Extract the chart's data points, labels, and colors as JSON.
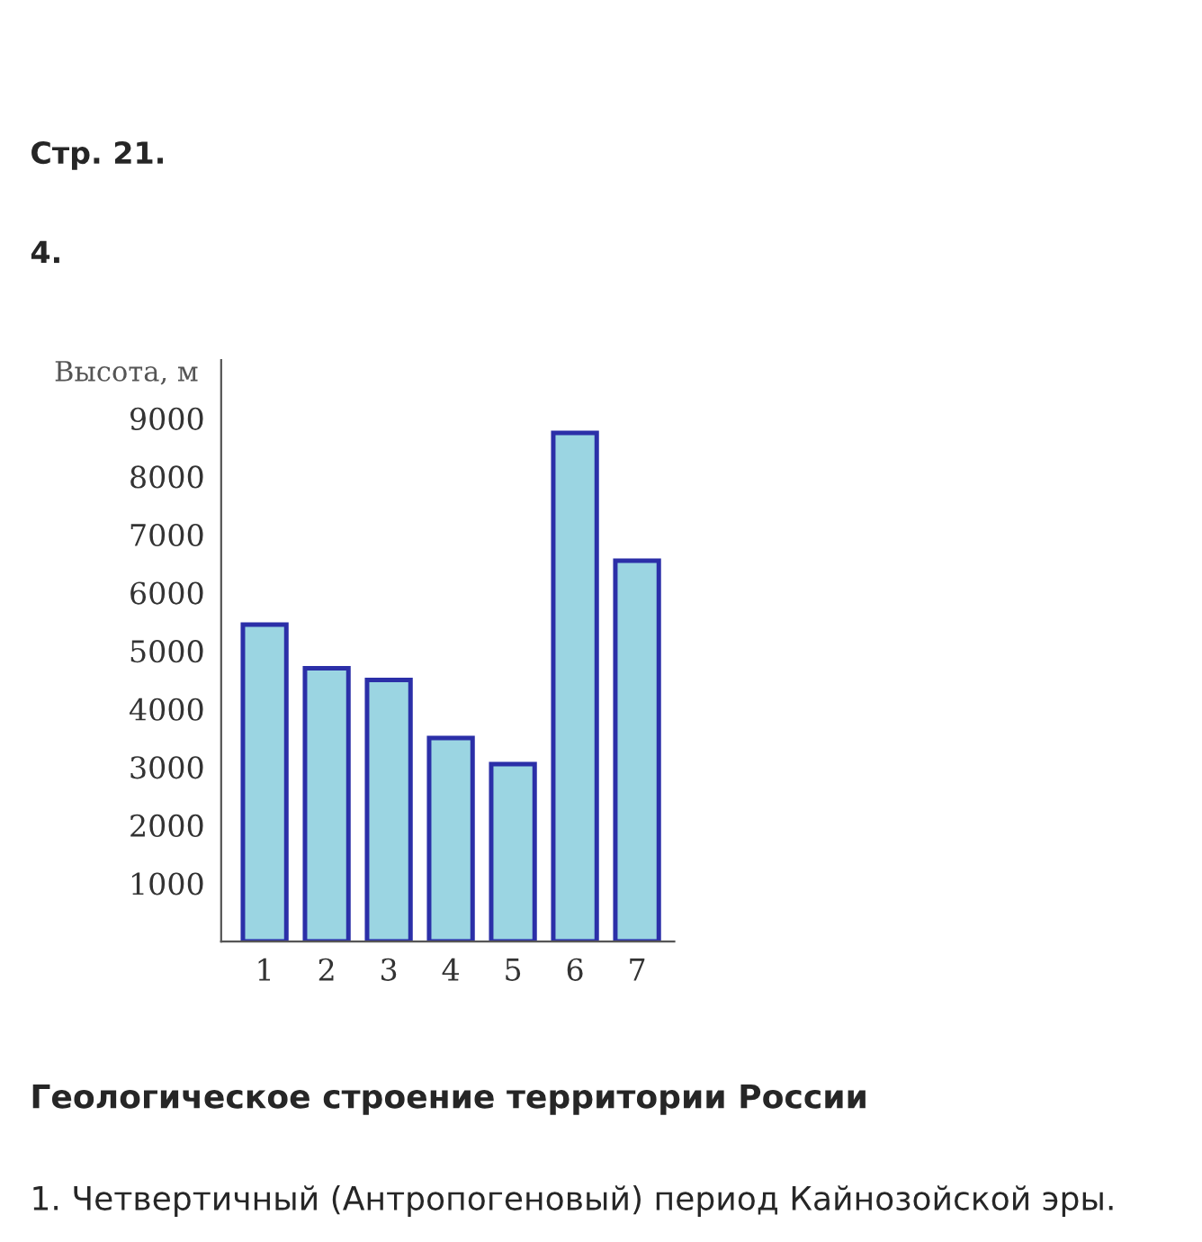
{
  "chart_data": {
    "type": "bar",
    "ylabel": "Высота, м",
    "categories": [
      "1",
      "2",
      "3",
      "4",
      "5",
      "6",
      "7"
    ],
    "values": [
      5450,
      4700,
      4500,
      3500,
      3050,
      8750,
      6550
    ],
    "color": "#8fdcee",
    "ylim": [
      0,
      10000
    ],
    "yticks": [
      1000,
      2000,
      3000,
      4000,
      5000,
      6000,
      7000,
      8000,
      9000
    ],
    "grid": false,
    "annotations": [
      "Стр. 21.",
      "4.",
      "Геологическое строение территории России",
      "1. Четвертичный (Антропогеновый) период Кайнозойской эры."
    ]
  }
}
